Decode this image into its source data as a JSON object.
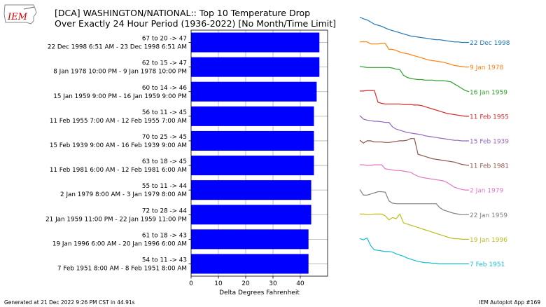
{
  "logo": {
    "text": "IEM"
  },
  "title": {
    "line1": "[DCA] WASHINGTON/NATIONAL:: Top 10 Temperature Drop",
    "line2": "Over Exactly 24 Hour Period (1936-2022) [No Month/Time Limit]"
  },
  "footer": {
    "generated": "Generated at 21 Dec 2022 9:26 PM CST in 44.91s",
    "app": "IEM Autoplot App #169"
  },
  "chart_data": {
    "type": "bar",
    "orientation": "horizontal",
    "xlabel": "Delta Degrees Fahrenheit",
    "xlim": [
      0,
      50
    ],
    "xticks": [
      0,
      10,
      20,
      30,
      40
    ],
    "grid": true,
    "bar_color": "#0000ff",
    "events": [
      {
        "drop": "67 to 20 -> 47",
        "period": "22 Dec 1998 6:51 AM - 23 Dec 1998 6:51 AM",
        "value": 47,
        "label": "22 Dec 1998",
        "color": "#1f77b4",
        "trace": [
          67,
          64,
          62,
          58,
          54,
          52,
          50,
          47,
          44,
          42,
          40,
          38,
          36,
          34,
          32,
          31,
          30,
          29,
          28,
          27,
          26,
          25,
          25,
          24,
          23,
          22,
          21,
          21,
          20,
          20,
          20
        ]
      },
      {
        "drop": "62 to 15 -> 47",
        "period": "8 Jan 1978 10:00 PM - 9 Jan 1978 10:00 PM",
        "value": 47,
        "label": "9 Jan 1978",
        "color": "#ff7f0e",
        "trace": [
          62,
          62,
          62,
          58,
          58,
          58,
          59,
          59,
          48,
          48,
          46,
          43,
          41,
          40,
          38,
          36,
          34,
          32,
          30,
          28,
          27,
          26,
          25,
          24,
          22,
          20,
          18,
          17,
          16,
          15,
          15
        ]
      },
      {
        "drop": "60 to 14 -> 46",
        "period": "15 Jan 1959 9:00 PM - 16 Jan 1959 9:00 PM",
        "value": 46,
        "label": "16 Jan 1959",
        "color": "#2ca02c",
        "trace": [
          60,
          59,
          58,
          58,
          58,
          58,
          58,
          58,
          58,
          57,
          55,
          54,
          44,
          40,
          38,
          37,
          36,
          36,
          35,
          35,
          35,
          34,
          34,
          34,
          33,
          32,
          28,
          24,
          20,
          16,
          14
        ]
      },
      {
        "drop": "56 to 11 -> 45",
        "period": "11 Feb 1955 7:00 AM - 12 Feb 1955 7:00 AM",
        "value": 45,
        "label": "11 Feb 1955",
        "color": "#d62728",
        "trace": [
          56,
          56,
          57,
          57,
          57,
          36,
          34,
          33,
          33,
          33,
          33,
          33,
          32,
          32,
          32,
          31,
          31,
          30,
          28,
          26,
          24,
          22,
          20,
          18,
          16,
          15,
          14,
          13,
          12,
          11,
          11
        ]
      },
      {
        "drop": "70 to 25 -> 45",
        "period": "15 Feb 1939 9:00 AM - 16 Feb 1939 9:00 AM",
        "value": 45,
        "label": "15 Feb 1939",
        "color": "#9467bd",
        "trace": [
          70,
          64,
          62,
          61,
          60,
          60,
          59,
          58,
          58,
          50,
          46,
          44,
          42,
          40,
          39,
          38,
          37,
          36,
          34,
          33,
          32,
          31,
          30,
          29,
          28,
          27,
          26,
          26,
          25,
          25,
          25
        ]
      },
      {
        "drop": "63 to 18 -> 45",
        "period": "11 Feb 1981 6:00 AM - 12 Feb 1981 6:00 AM",
        "value": 45,
        "label": "11 Feb 1981",
        "color": "#8c564b",
        "trace": [
          63,
          58,
          62,
          62,
          60,
          60,
          60,
          59,
          59,
          60,
          61,
          62,
          62,
          63,
          66,
          66,
          38,
          36,
          34,
          32,
          30,
          29,
          28,
          27,
          26,
          25,
          24,
          22,
          20,
          19,
          18
        ]
      },
      {
        "drop": "55 to 11 -> 44",
        "period": "2 Jan 1979 8:00 AM - 3 Jan 1979 8:00 AM",
        "value": 44,
        "label": "2 Jan 1979",
        "color": "#e377c2",
        "trace": [
          55,
          55,
          54,
          54,
          55,
          55,
          55,
          48,
          47,
          46,
          45,
          45,
          44,
          43,
          42,
          38,
          35,
          33,
          32,
          31,
          30,
          29,
          28,
          27,
          24,
          20,
          16,
          14,
          12,
          11,
          11
        ]
      },
      {
        "drop": "72 to 28 -> 44",
        "period": "21 Jan 1959 11:00 PM - 22 Jan 1959 11:00 PM",
        "value": 44,
        "label": "22 Jan 1959",
        "color": "#7f7f7f",
        "trace": [
          72,
          62,
          62,
          64,
          66,
          68,
          68,
          67,
          52,
          48,
          47,
          47,
          47,
          47,
          47,
          47,
          47,
          47,
          47,
          47,
          47,
          47,
          40,
          36,
          34,
          32,
          30,
          29,
          28,
          28,
          28
        ]
      },
      {
        "drop": "61 to 18 -> 43",
        "period": "19 Jan 1996 6:00 AM - 20 Jan 1996 6:00 AM",
        "value": 43,
        "label": "19 Jan 1996",
        "color": "#bcbd22",
        "trace": [
          61,
          61,
          60,
          60,
          61,
          61,
          61,
          58,
          51,
          55,
          53,
          61,
          46,
          44,
          42,
          40,
          38,
          36,
          34,
          32,
          30,
          28,
          26,
          24,
          22,
          20,
          19,
          19,
          18,
          18,
          18
        ]
      },
      {
        "drop": "54 to 11 -> 43",
        "period": "7 Feb 1951 8:00 AM - 8 Feb 1951 8:00 AM",
        "value": 43,
        "label": "7 Feb 1951",
        "color": "#17becf",
        "trace": [
          54,
          52,
          55,
          42,
          35,
          34,
          33,
          32,
          32,
          31,
          28,
          26,
          24,
          21,
          19,
          17,
          15,
          14,
          13,
          13,
          12,
          12,
          11,
          11,
          11,
          11,
          11,
          11,
          11,
          11,
          11
        ]
      }
    ]
  }
}
